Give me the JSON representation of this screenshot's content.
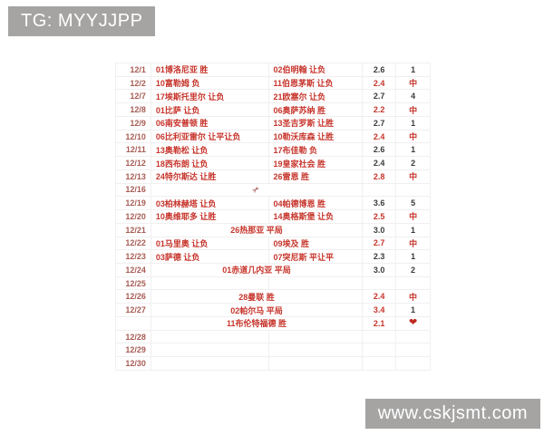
{
  "page": {
    "top_badge": "TG: MYYJJPP",
    "bottom_badge": "www.cskjsmt.com"
  },
  "colors": {
    "badge_bg": "#a5a4a3",
    "badge_text": "#ffffff",
    "date_text": "#a85c55",
    "team_text": "#c7352c",
    "value_normal": "#3b3b3b",
    "value_hit": "#c7352c",
    "heart_color": "#c0281f",
    "scissors_color": "#8b2e26",
    "grid_line": "#f1efef"
  },
  "icons": {
    "scissors": "✂",
    "heart": "❤"
  },
  "table": {
    "rows": [
      {
        "date": "12/1",
        "team1": "01博洛尼亚 胜",
        "team2": "02伯明翰 让负",
        "odds": "2.6",
        "result": "1",
        "odds_hit": false,
        "result_hit": false
      },
      {
        "date": "12/2",
        "team1": "10富勒姆 负",
        "team2": "11伯恩茅斯 让负",
        "odds": "2.4",
        "result": "中",
        "odds_hit": true,
        "result_hit": true
      },
      {
        "date": "12/7",
        "team1": "17埃斯托里尔 让负",
        "team2": "21欧塞尔 让负",
        "odds": "2.7",
        "result": "4",
        "odds_hit": false,
        "result_hit": false
      },
      {
        "date": "12/8",
        "team1": "01比萨 让负",
        "team2": "06奥萨苏纳 胜",
        "odds": "2.2",
        "result": "中",
        "odds_hit": true,
        "result_hit": true
      },
      {
        "date": "12/9",
        "team1": "06南安普顿 胜",
        "team2": "13圣吉罗斯 让胜",
        "odds": "2.7",
        "result": "1",
        "odds_hit": false,
        "result_hit": false
      },
      {
        "date": "12/10",
        "team1": "06比利亚雷尔 让平让负",
        "team2": "10勒沃库森 让胜",
        "odds": "2.4",
        "result": "中",
        "odds_hit": true,
        "result_hit": true
      },
      {
        "date": "12/11",
        "team1": "13奥勒松 让负",
        "team2": "17布佳勒 负",
        "odds": "2.6",
        "result": "1",
        "odds_hit": false,
        "result_hit": false
      },
      {
        "date": "12/12",
        "team1": "18西布朗 让负",
        "team2": "19皇家社会 胜",
        "odds": "2.4",
        "result": "2",
        "odds_hit": false,
        "result_hit": false
      },
      {
        "date": "12/13",
        "team1": "24特尔斯达 让胜",
        "team2": "26雷恩 胜",
        "odds": "2.8",
        "result": "中",
        "odds_hit": true,
        "result_hit": true
      },
      {
        "date": "12/16",
        "icon": "scissors"
      },
      {
        "date": "12/19",
        "team1": "03柏林赫塔 让负",
        "team2": "04帕德博恩 胜",
        "odds": "3.6",
        "result": "5",
        "odds_hit": false,
        "result_hit": false
      },
      {
        "date": "12/20",
        "team1": "10奥维耶多 让胜",
        "team2": "14奥格斯堡 让负",
        "odds": "2.5",
        "result": "中",
        "odds_hit": true,
        "result_hit": true
      },
      {
        "date": "12/21",
        "span": "26热那亚 平局",
        "odds": "3.0",
        "result": "1",
        "odds_hit": false,
        "result_hit": false
      },
      {
        "date": "12/22",
        "team1": "01马里奥 让负",
        "team2": "09埃及 胜",
        "odds": "2.7",
        "result": "中",
        "odds_hit": true,
        "result_hit": true
      },
      {
        "date": "12/23",
        "team1": "03萨德 让负",
        "team2": "07突尼斯 平让平",
        "odds": "2.3",
        "result": "1",
        "odds_hit": false,
        "result_hit": false
      },
      {
        "date": "12/24",
        "span": "01赤道几内亚 平局",
        "odds": "3.0",
        "result": "2",
        "odds_hit": false,
        "result_hit": false
      },
      {
        "date": "12/25"
      },
      {
        "date": "12/26",
        "span": "28曼联 胜",
        "odds": "2.4",
        "result": "中",
        "odds_hit": true,
        "result_hit": true
      },
      {
        "date": "12/27",
        "span": "02帕尔马 平局",
        "odds": "3.4",
        "result": "1",
        "odds_hit": true,
        "result_hit": false
      },
      {
        "date": "",
        "span": "11布伦特福德 胜",
        "odds": "2.1",
        "result_icon": "heart",
        "odds_hit": true,
        "result_hit": true
      },
      {
        "date": "12/28"
      },
      {
        "date": "12/29"
      },
      {
        "date": "12/30"
      }
    ]
  }
}
